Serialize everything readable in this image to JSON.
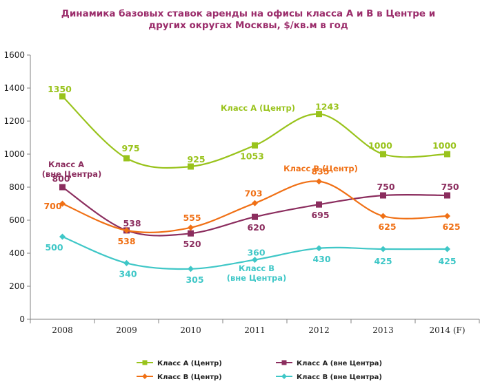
{
  "chart_data": {
    "type": "line",
    "title": "Динамика базовых ставок аренды на офисы класса А и В в Центре и других округах Москвы, $/кв.м в год",
    "categories": [
      "2008",
      "2009",
      "2010",
      "2011",
      "2012",
      "2013",
      "2014 (F)"
    ],
    "ylim": [
      0,
      1600
    ],
    "yticks": [
      0,
      200,
      400,
      600,
      800,
      1000,
      1200,
      1400,
      1600
    ],
    "grid": false,
    "legend_position": "bottom",
    "series": [
      {
        "name": "Класс А (Центр)",
        "values": [
          1350,
          975,
          925,
          1053,
          1243,
          1000,
          1000
        ],
        "labels": [
          "1350",
          "975",
          "925",
          "1053",
          "1243",
          "1000",
          "1000"
        ],
        "color": "#99c31c",
        "marker": "square"
      },
      {
        "name": "Класс А (вне Центра)",
        "values": [
          800,
          538,
          520,
          620,
          695,
          750,
          750
        ],
        "labels": [
          "800",
          "538",
          "520",
          "620",
          "695",
          "750",
          "750"
        ],
        "color": "#8b2d5e",
        "marker": "square"
      },
      {
        "name": "Класс В (Центр)",
        "values": [
          700,
          538,
          555,
          703,
          835,
          625,
          625
        ],
        "labels": [
          "700",
          "538",
          "555",
          "703",
          "835",
          "625",
          "625"
        ],
        "color": "#f07015",
        "marker": "diamond"
      },
      {
        "name": "Класс В (вне Центра)",
        "values": [
          500,
          340,
          305,
          360,
          430,
          425,
          425
        ],
        "labels": [
          "500",
          "340",
          "305",
          "360",
          "430",
          "425",
          "425"
        ],
        "color": "#3fc7c7",
        "marker": "diamond"
      }
    ],
    "annotations": [
      {
        "text": "Класс А (Центр)",
        "series": 0
      },
      {
        "text": "Класс А",
        "series": 1
      },
      {
        "text": "(вне Центра)",
        "series": 1
      },
      {
        "text": "Класс В (Центр)",
        "series": 2
      },
      {
        "text": "Класс В",
        "series": 3
      },
      {
        "text": "(вне Центра)",
        "series": 3
      }
    ]
  }
}
